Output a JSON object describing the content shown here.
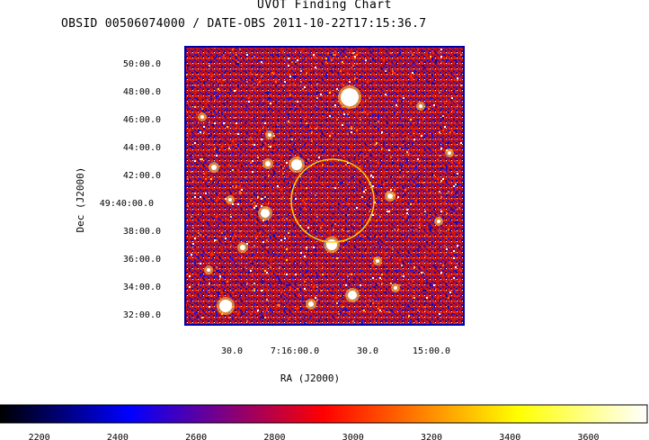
{
  "header": {
    "title": "UVOT Finding Chart",
    "subtitle": "OBSID 00506074000 / DATE-OBS 2011-10-22T17:15:36.7"
  },
  "chart_data": {
    "type": "heatmap",
    "title": "UVOT Finding Chart",
    "xlabel": "RA (J2000)",
    "ylabel": "Dec (J2000)",
    "x_ticks": [
      "30.0",
      "7:16:00.0",
      "30.0",
      "15:00.0"
    ],
    "y_ticks": [
      "50:00.0",
      "48:00.0",
      "46:00.0",
      "44:00.0",
      "42:00.0",
      "49:40:00.0",
      "38:00.0",
      "36:00.0",
      "34:00.0",
      "32:00.0"
    ],
    "colorbar": {
      "ticks": [
        2200,
        2400,
        2600,
        2800,
        3000,
        3200,
        3400,
        3600
      ],
      "range": [
        2100,
        3750
      ],
      "stops": [
        "#000000",
        "#0000ff",
        "#ff0000",
        "#ffff00",
        "#ffffff"
      ]
    },
    "region": {
      "shape": "circle",
      "color": "#ffcc00"
    },
    "colors": {
      "frame": "#0000aa"
    }
  }
}
